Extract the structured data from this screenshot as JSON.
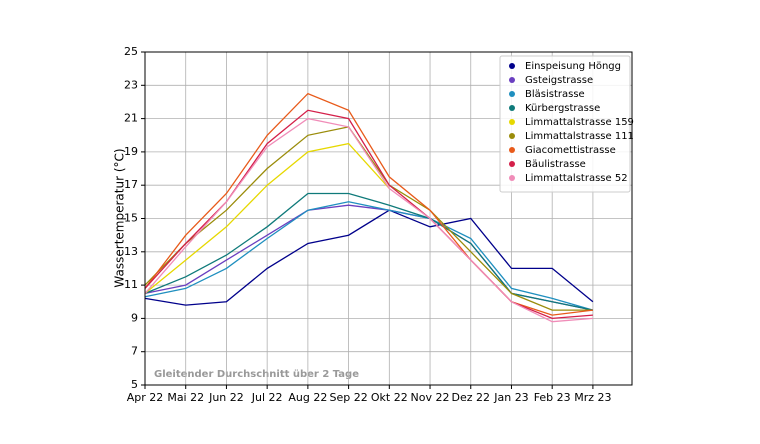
{
  "chart_data": {
    "type": "line",
    "ylabel": "Wassertemperatur (°C)",
    "annotation": "Gleitender Durchschnitt über 2 Tage",
    "x": [
      "Apr 22",
      "Mai 22",
      "Jun 22",
      "Jul 22",
      "Aug 22",
      "Sep 22",
      "Okt 22",
      "Nov 22",
      "Dez 22",
      "Jan 23",
      "Feb 23",
      "Mrz 23"
    ],
    "ylim": [
      5,
      25
    ],
    "yticks": [
      5,
      7,
      9,
      11,
      13,
      15,
      17,
      19,
      21,
      23,
      25
    ],
    "grid": true,
    "legend": "upper right",
    "series": [
      {
        "name": "Einspeisung Höngg",
        "color": "#00008b",
        "values": [
          10.2,
          9.8,
          10,
          12,
          13.5,
          14,
          15.5,
          14.5,
          15,
          12,
          12,
          10
        ]
      },
      {
        "name": "Gsteigstrasse",
        "color": "#6a3fc0",
        "values": [
          10.5,
          11,
          12.5,
          14,
          15.5,
          15.8,
          15.5,
          15,
          13.5,
          10.5,
          10,
          9.5
        ]
      },
      {
        "name": "Bläsistrasse",
        "color": "#1f8fbf",
        "values": [
          10.3,
          10.8,
          12,
          13.8,
          15.5,
          16,
          15.5,
          15,
          13.8,
          10.8,
          10.2,
          9.5
        ]
      },
      {
        "name": "Kürbergstrasse",
        "color": "#0f7a7a",
        "values": [
          10.5,
          11.5,
          12.8,
          14.5,
          16.5,
          16.5,
          15.8,
          15,
          13.5,
          10.5,
          10,
          9.5
        ]
      },
      {
        "name": "Limmattalstrasse 159",
        "color": "#e6d800",
        "values": [
          10.5,
          12.5,
          14.5,
          17,
          19,
          19.5,
          16.8,
          null,
          null,
          null,
          null,
          null
        ]
      },
      {
        "name": "Limmattalstrasse 111",
        "color": "#9a8c0a",
        "values": [
          11,
          13.5,
          15.5,
          18,
          20,
          20.5,
          17,
          15.5,
          13,
          10.5,
          9.5,
          9.5
        ]
      },
      {
        "name": "Giacomettistrasse",
        "color": "#e85a1a",
        "values": [
          10.8,
          14,
          16.5,
          20,
          22.5,
          21.5,
          17.5,
          15.5,
          12.5,
          10,
          9.2,
          9.5
        ]
      },
      {
        "name": "Bäulistrasse",
        "color": "#d4204a",
        "values": [
          10.8,
          13.5,
          16,
          19.5,
          21.5,
          21,
          17,
          15,
          12.5,
          10,
          9,
          9.2
        ]
      },
      {
        "name": "Limmattalstrasse 52",
        "color": "#f08cb8",
        "values": [
          10.5,
          13.3,
          16,
          19.3,
          21,
          20.5,
          16.8,
          15,
          12.5,
          10,
          8.8,
          9
        ]
      }
    ]
  }
}
